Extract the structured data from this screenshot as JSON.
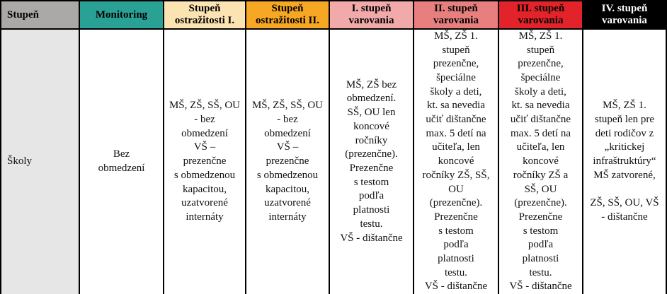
{
  "table": {
    "title_semantic": "school-restrictions-by-alert-level",
    "border_color": "#000000",
    "columns": [
      {
        "id": "stupen",
        "header": "Stupeň",
        "header_bg": "#aba8a8",
        "header_fg": "#000000",
        "body": "Školy",
        "body_bg": "#e7e6e6"
      },
      {
        "id": "monitoring",
        "header": "Monitoring",
        "header_bg": "#29a295",
        "header_fg": "#000000",
        "body": "Bez\nobmedzení",
        "body_bg": "#ffffff"
      },
      {
        "id": "ostrazitost-1",
        "header": "Stupeň\nostražitosti I.",
        "header_bg": "#fce3b2",
        "header_fg": "#000000",
        "body": "MŠ, ZŠ, SŠ, OU\n- bez\nobmedzení\nVŠ –\nprezenčne\ns obmedzenou\nkapacitou,\nuzatvorené\ninternáty",
        "body_bg": "#ffffff"
      },
      {
        "id": "ostrazitost-2",
        "header": "Stupeň\nostražitosti II.",
        "header_bg": "#f6a724",
        "header_fg": "#000000",
        "body": "MŠ, ZŠ, SŠ, OU\n- bez\nobmedzení\nVŠ –\nprezenčne\ns obmedzenou\nkapacitou,\nuzatvorené\ninternáty",
        "body_bg": "#ffffff"
      },
      {
        "id": "varovanie-1",
        "header": "I. stupeň\nvarovania",
        "header_bg": "#f2a9a9",
        "header_fg": "#000000",
        "body": "MŠ, ZŠ bez\nobmedzení.\nSŠ, OU len\nkoncové\nročníky\n(prezenčne).\nPrezenčne\ns testom\npodľa\nplatnosti\ntestu.\nVŠ - dištančne",
        "body_bg": "#ffffff"
      },
      {
        "id": "varovanie-2",
        "header": "II. stupeň\nvarovania",
        "header_bg": "#e87f7f",
        "header_fg": "#000000",
        "body": "MŠ, ZŠ 1.\nstupeň\nprezenčne,\nšpeciálne\nškoly a deti,\nkt. sa nevedia\nučiť dištančne\nmax. 5 detí na\nučiteľa, len\nkoncové\nročníky ZŠ, SŠ,\nOU\n(prezenčne).\nPrezenčne\ns testom\npodľa\nplatnosti\ntestu.\nVŠ - dištančne",
        "body_bg": "#ffffff"
      },
      {
        "id": "varovanie-3",
        "header": "III. stupeň\nvarovania",
        "header_bg": "#e2242a",
        "header_fg": "#000000",
        "body": "MŠ, ZŠ 1.\nstupeň\nprezenčne,\nšpeciálne\nškoly a deti,\nkt. sa nevedia\nučiť dištančne\nmax. 5 detí na\nučiteľa, len\nkoncové\nročníky ZŠ a\nSŠ, OU\n(prezenčne).\nPrezenčne\ns testom\npodľa\nplatnosti\ntestu.\nVŠ - dištančne",
        "body_bg": "#ffffff"
      },
      {
        "id": "varovanie-4",
        "header": "IV. stupeň\nvarovania",
        "header_bg": "#000000",
        "header_fg": "#ffffff",
        "body": "MŠ, ZŠ 1.\nstupeň len pre\ndeti rodičov z\n„kritickej\ninfraštruktúry“\nMŠ zatvorené,\n\nZŠ, SŠ, OU, VŠ\n- dištančne",
        "body_bg": "#ffffff"
      }
    ]
  }
}
